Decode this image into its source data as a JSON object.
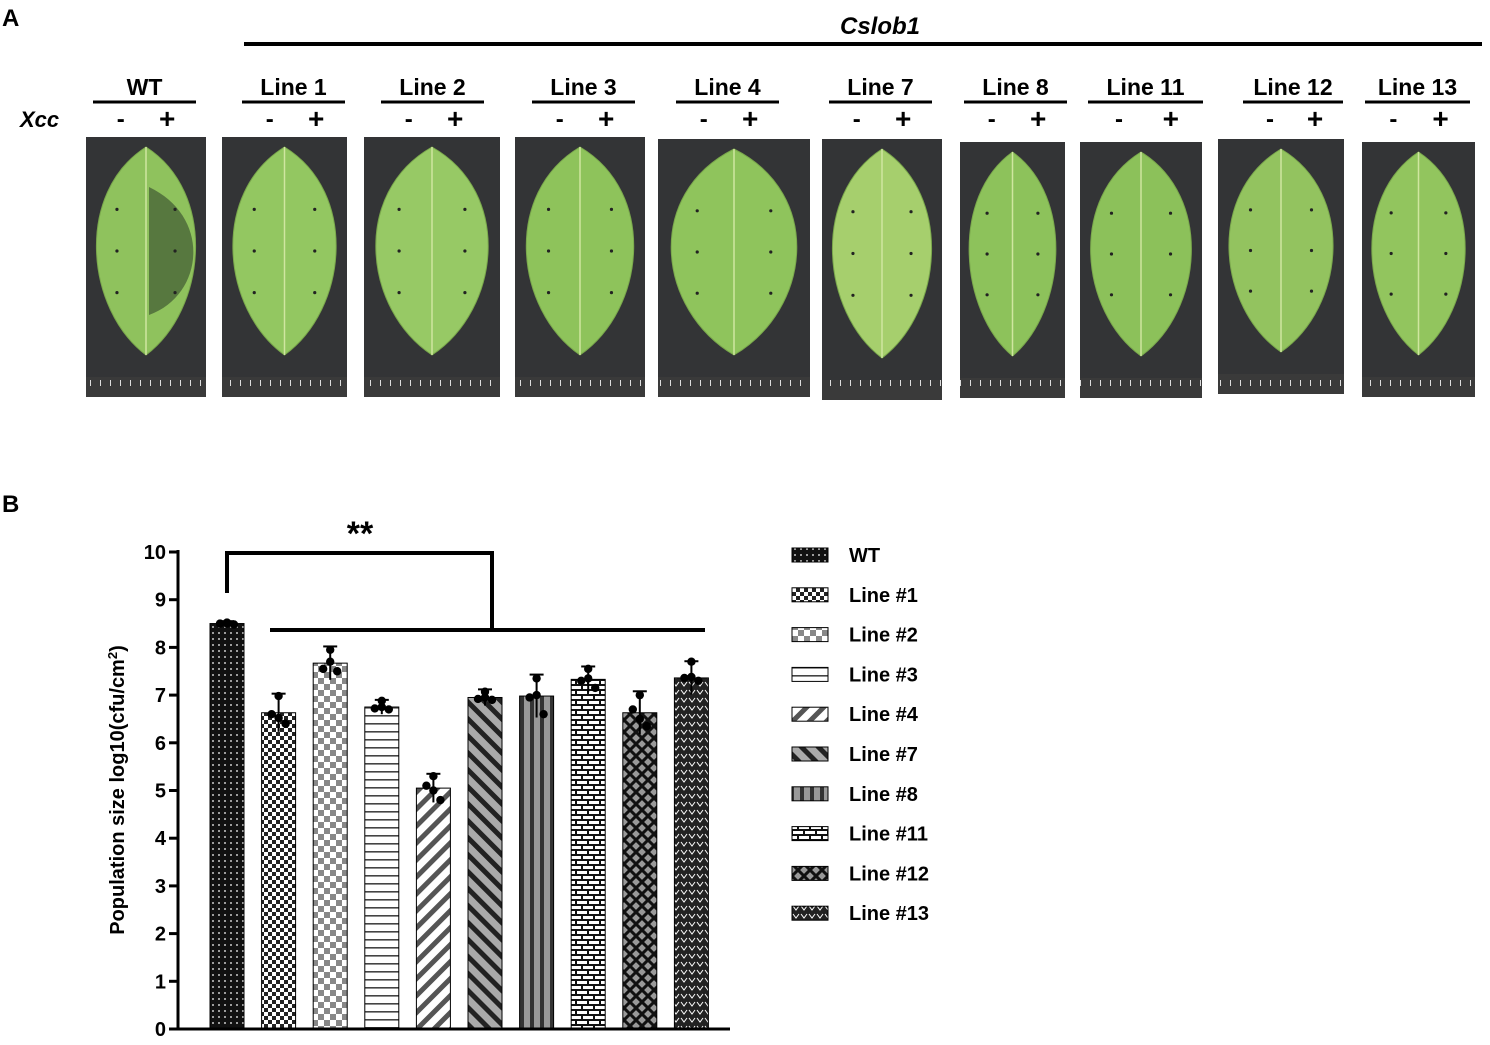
{
  "panel_a": {
    "label": "A",
    "group_label": "Cslob1",
    "treatment_label": "Xcc",
    "minus": "-",
    "plus": "+",
    "lines": [
      {
        "name": "WT",
        "tissue": "#8fc25d",
        "lesion": true
      },
      {
        "name": "Line 1",
        "tissue": "#93c761"
      },
      {
        "name": "Line 2",
        "tissue": "#97c965"
      },
      {
        "name": "Line 3",
        "tissue": "#8ec35b"
      },
      {
        "name": "Line 4",
        "tissue": "#8fc45c"
      },
      {
        "name": "Line 7",
        "tissue": "#a6cf6d"
      },
      {
        "name": "Line 8",
        "tissue": "#8dc25b"
      },
      {
        "name": "Line 11",
        "tissue": "#8cc15a"
      },
      {
        "name": "Line 12",
        "tissue": "#93c35f"
      },
      {
        "name": "Line 13",
        "tissue": "#92c55e"
      }
    ]
  },
  "panel_b": {
    "label": "B",
    "significance": "**"
  },
  "chart_data": {
    "type": "bar",
    "ylabel": "Population size log10(cfu/cm",
    "ylabel_sup": "2",
    "ylabel_close": ")",
    "ylim": [
      0,
      10
    ],
    "yticks": [
      "0",
      "1",
      "2",
      "3",
      "4",
      "5",
      "6",
      "7",
      "8",
      "9",
      "10"
    ],
    "categories": [
      "WT",
      "Line #1",
      "Line #2",
      "Line #3",
      "Line #4",
      "Line #7",
      "Line #8",
      "Line #11",
      "Line #12",
      "Line #13"
    ],
    "values": [
      8.5,
      6.63,
      7.67,
      6.75,
      5.05,
      6.95,
      6.98,
      7.33,
      6.63,
      7.36
    ],
    "errors": [
      0.05,
      0.4,
      0.35,
      0.15,
      0.3,
      0.17,
      0.45,
      0.27,
      0.45,
      0.35
    ],
    "points": [
      [
        8.52,
        8.5,
        8.48,
        8.5
      ],
      [
        6.98,
        6.6,
        6.4,
        6.52
      ],
      [
        7.95,
        7.55,
        7.5,
        7.7
      ],
      [
        6.88,
        6.72,
        6.7,
        6.75
      ],
      [
        5.3,
        5.1,
        4.8,
        5.0
      ],
      [
        7.07,
        6.92,
        6.9,
        6.95
      ],
      [
        7.35,
        6.95,
        6.6,
        7.0
      ],
      [
        7.55,
        7.3,
        7.15,
        7.35
      ],
      [
        7.0,
        6.7,
        6.35,
        6.5
      ],
      [
        7.7,
        7.36,
        7.3,
        7.38
      ]
    ]
  }
}
